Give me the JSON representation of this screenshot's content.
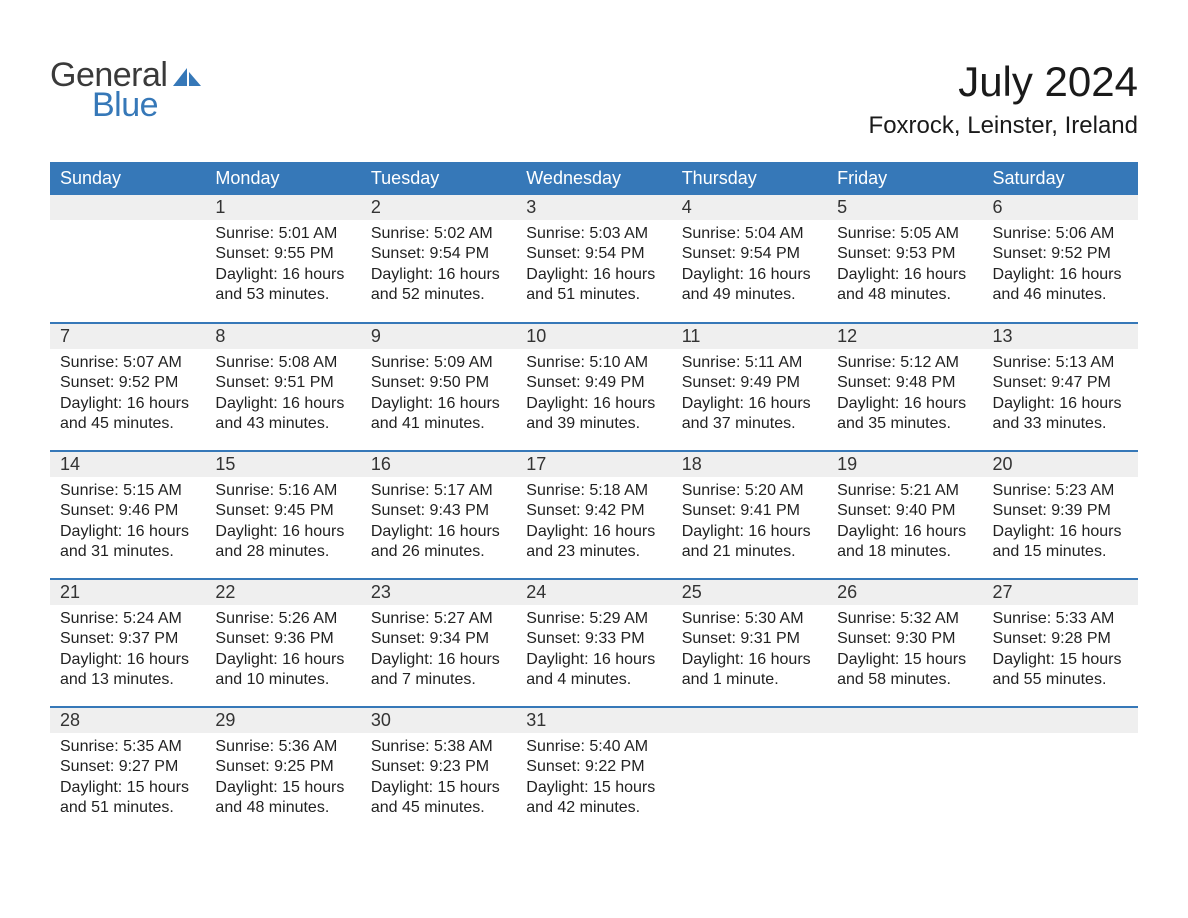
{
  "logo": {
    "word1": "General",
    "word2": "Blue",
    "word1_color": "#3a3a3a",
    "word2_color": "#3678b8",
    "icon_fill": "#3678b8"
  },
  "title": "July 2024",
  "location": "Foxrock, Leinster, Ireland",
  "header_bg": "#3678b8",
  "header_fg": "#ffffff",
  "daynum_bg": "#efefef",
  "row_divider": "#3678b8",
  "text_color": "#222222",
  "body_fontsize": 16,
  "daynum_fontsize": 18,
  "header_fontsize": 18,
  "title_fontsize": 42,
  "location_fontsize": 24,
  "columns": [
    "Sunday",
    "Monday",
    "Tuesday",
    "Wednesday",
    "Thursday",
    "Friday",
    "Saturday"
  ],
  "weeks": [
    [
      null,
      {
        "n": "1",
        "sr": "5:01 AM",
        "ss": "9:55 PM",
        "dl": "16 hours and 53 minutes."
      },
      {
        "n": "2",
        "sr": "5:02 AM",
        "ss": "9:54 PM",
        "dl": "16 hours and 52 minutes."
      },
      {
        "n": "3",
        "sr": "5:03 AM",
        "ss": "9:54 PM",
        "dl": "16 hours and 51 minutes."
      },
      {
        "n": "4",
        "sr": "5:04 AM",
        "ss": "9:54 PM",
        "dl": "16 hours and 49 minutes."
      },
      {
        "n": "5",
        "sr": "5:05 AM",
        "ss": "9:53 PM",
        "dl": "16 hours and 48 minutes."
      },
      {
        "n": "6",
        "sr": "5:06 AM",
        "ss": "9:52 PM",
        "dl": "16 hours and 46 minutes."
      }
    ],
    [
      {
        "n": "7",
        "sr": "5:07 AM",
        "ss": "9:52 PM",
        "dl": "16 hours and 45 minutes."
      },
      {
        "n": "8",
        "sr": "5:08 AM",
        "ss": "9:51 PM",
        "dl": "16 hours and 43 minutes."
      },
      {
        "n": "9",
        "sr": "5:09 AM",
        "ss": "9:50 PM",
        "dl": "16 hours and 41 minutes."
      },
      {
        "n": "10",
        "sr": "5:10 AM",
        "ss": "9:49 PM",
        "dl": "16 hours and 39 minutes."
      },
      {
        "n": "11",
        "sr": "5:11 AM",
        "ss": "9:49 PM",
        "dl": "16 hours and 37 minutes."
      },
      {
        "n": "12",
        "sr": "5:12 AM",
        "ss": "9:48 PM",
        "dl": "16 hours and 35 minutes."
      },
      {
        "n": "13",
        "sr": "5:13 AM",
        "ss": "9:47 PM",
        "dl": "16 hours and 33 minutes."
      }
    ],
    [
      {
        "n": "14",
        "sr": "5:15 AM",
        "ss": "9:46 PM",
        "dl": "16 hours and 31 minutes."
      },
      {
        "n": "15",
        "sr": "5:16 AM",
        "ss": "9:45 PM",
        "dl": "16 hours and 28 minutes."
      },
      {
        "n": "16",
        "sr": "5:17 AM",
        "ss": "9:43 PM",
        "dl": "16 hours and 26 minutes."
      },
      {
        "n": "17",
        "sr": "5:18 AM",
        "ss": "9:42 PM",
        "dl": "16 hours and 23 minutes."
      },
      {
        "n": "18",
        "sr": "5:20 AM",
        "ss": "9:41 PM",
        "dl": "16 hours and 21 minutes."
      },
      {
        "n": "19",
        "sr": "5:21 AM",
        "ss": "9:40 PM",
        "dl": "16 hours and 18 minutes."
      },
      {
        "n": "20",
        "sr": "5:23 AM",
        "ss": "9:39 PM",
        "dl": "16 hours and 15 minutes."
      }
    ],
    [
      {
        "n": "21",
        "sr": "5:24 AM",
        "ss": "9:37 PM",
        "dl": "16 hours and 13 minutes."
      },
      {
        "n": "22",
        "sr": "5:26 AM",
        "ss": "9:36 PM",
        "dl": "16 hours and 10 minutes."
      },
      {
        "n": "23",
        "sr": "5:27 AM",
        "ss": "9:34 PM",
        "dl": "16 hours and 7 minutes."
      },
      {
        "n": "24",
        "sr": "5:29 AM",
        "ss": "9:33 PM",
        "dl": "16 hours and 4 minutes."
      },
      {
        "n": "25",
        "sr": "5:30 AM",
        "ss": "9:31 PM",
        "dl": "16 hours and 1 minute."
      },
      {
        "n": "26",
        "sr": "5:32 AM",
        "ss": "9:30 PM",
        "dl": "15 hours and 58 minutes."
      },
      {
        "n": "27",
        "sr": "5:33 AM",
        "ss": "9:28 PM",
        "dl": "15 hours and 55 minutes."
      }
    ],
    [
      {
        "n": "28",
        "sr": "5:35 AM",
        "ss": "9:27 PM",
        "dl": "15 hours and 51 minutes."
      },
      {
        "n": "29",
        "sr": "5:36 AM",
        "ss": "9:25 PM",
        "dl": "15 hours and 48 minutes."
      },
      {
        "n": "30",
        "sr": "5:38 AM",
        "ss": "9:23 PM",
        "dl": "15 hours and 45 minutes."
      },
      {
        "n": "31",
        "sr": "5:40 AM",
        "ss": "9:22 PM",
        "dl": "15 hours and 42 minutes."
      },
      null,
      null,
      null
    ]
  ],
  "labels": {
    "sunrise": "Sunrise: ",
    "sunset": "Sunset: ",
    "daylight": "Daylight: "
  }
}
